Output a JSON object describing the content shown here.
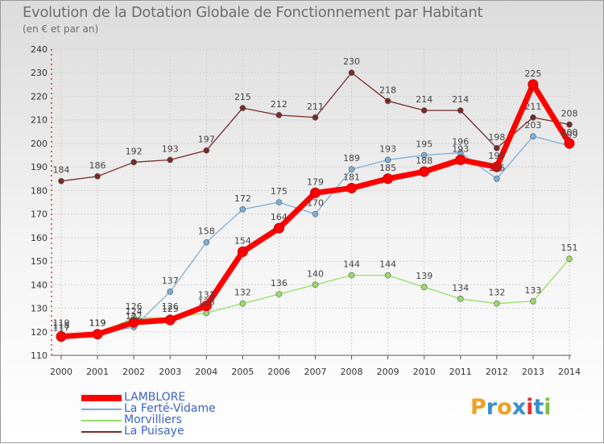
{
  "header": {
    "title": "Evolution de la Dotation Globale de Fonctionnement par Habitant",
    "subtitle": "(en € et par an)"
  },
  "brand": {
    "letters": [
      "P",
      "r",
      "o",
      "x",
      "i",
      "t",
      "i"
    ],
    "colors": [
      "#f0a020",
      "#3a8fd0",
      "#f0a020",
      "#3a8fd0",
      "#e03030",
      "#3a8fd0",
      "#80c040"
    ]
  },
  "chart_data": {
    "type": "line",
    "categories": [
      "2000",
      "2001",
      "2002",
      "2003",
      "2004",
      "2005",
      "2006",
      "2007",
      "2008",
      "2009",
      "2010",
      "2011",
      "2012",
      "2013",
      "2014"
    ],
    "ylim": [
      110,
      240
    ],
    "yticks": [
      110,
      120,
      130,
      140,
      150,
      160,
      170,
      180,
      190,
      200,
      210,
      220,
      230,
      240
    ],
    "grid": true,
    "legend_position": "bottom-left",
    "series": [
      {
        "name": "LAMBLORE",
        "color": "#ff0000",
        "values": [
          118,
          119,
          124,
          125,
          131,
          154,
          164,
          179,
          181,
          185,
          188,
          193,
          190,
          225,
          200
        ],
        "labels": [
          "118",
          "119",
          "124",
          "125",
          "131",
          "154",
          "164",
          "179",
          "181",
          "185",
          "188",
          "193",
          "190",
          "225",
          "200"
        ]
      },
      {
        "name": "La Ferté-Vidame",
        "color": "#7aaed8",
        "values": [
          119,
          119,
          122,
          137,
          158,
          172,
          175,
          170,
          189,
          193,
          195,
          196,
          185,
          203,
          199
        ],
        "labels": [
          "119",
          "119",
          "122",
          "137",
          "158",
          "172",
          "175",
          "170",
          "189",
          "193",
          "195",
          "196",
          "185",
          "203",
          "199"
        ]
      },
      {
        "name": "Morvilliers",
        "color": "#99dd66",
        "values": [
          117,
          119,
          126,
          126,
          128,
          132,
          136,
          140,
          144,
          144,
          139,
          134,
          132,
          133,
          151
        ],
        "labels": [
          "117",
          "119",
          "126",
          "126",
          "128",
          "132",
          "136",
          "140",
          "144",
          "144",
          "139",
          "134",
          "132",
          "133",
          "151"
        ]
      },
      {
        "name": "La Puisaye",
        "color": "#7a2a2a",
        "values": [
          184,
          186,
          192,
          193,
          197,
          215,
          212,
          211,
          230,
          218,
          214,
          214,
          198,
          211,
          208
        ],
        "labels": [
          "184",
          "186",
          "192",
          "193",
          "197",
          "215",
          "212",
          "211",
          "230",
          "218",
          "214",
          "214",
          "198",
          "211",
          "208"
        ]
      }
    ]
  }
}
